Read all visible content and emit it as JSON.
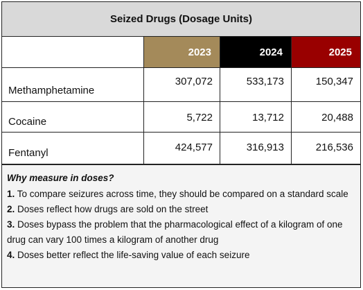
{
  "table": {
    "title": "Seized Drugs (Dosage Units)",
    "years": [
      "2023",
      "2024",
      "2025"
    ],
    "rows": [
      {
        "drug": "Methamphetamine",
        "values": [
          "307,072",
          "533,173",
          "150,347"
        ]
      },
      {
        "drug": "Cocaine",
        "values": [
          "5,722",
          "13,712",
          "20,488"
        ]
      },
      {
        "drug": "Fentanyl",
        "values": [
          "424,577",
          "316,913",
          "216,536"
        ]
      }
    ]
  },
  "colors": {
    "title_bg": "#d9d9d9",
    "y2023": "#a48a5a",
    "y2024": "#000000",
    "y2025": "#990000",
    "notes_bg": "#f4f4f4"
  },
  "notes": {
    "heading": "Why measure in doses?",
    "items": [
      {
        "num": "1.",
        "text": "To compare seizures across time, they should be compared on a standard scale"
      },
      {
        "num": "2.",
        "text": "Doses reflect how drugs are sold on the street"
      },
      {
        "num": "3.",
        "text": "Doses bypass the problem that the pharmacological effect of a kilogram of one drug can vary 100 times a kilogram of another drug"
      },
      {
        "num": "4.",
        "text": "Doses better reflect the life-saving value of each seizure"
      }
    ]
  }
}
